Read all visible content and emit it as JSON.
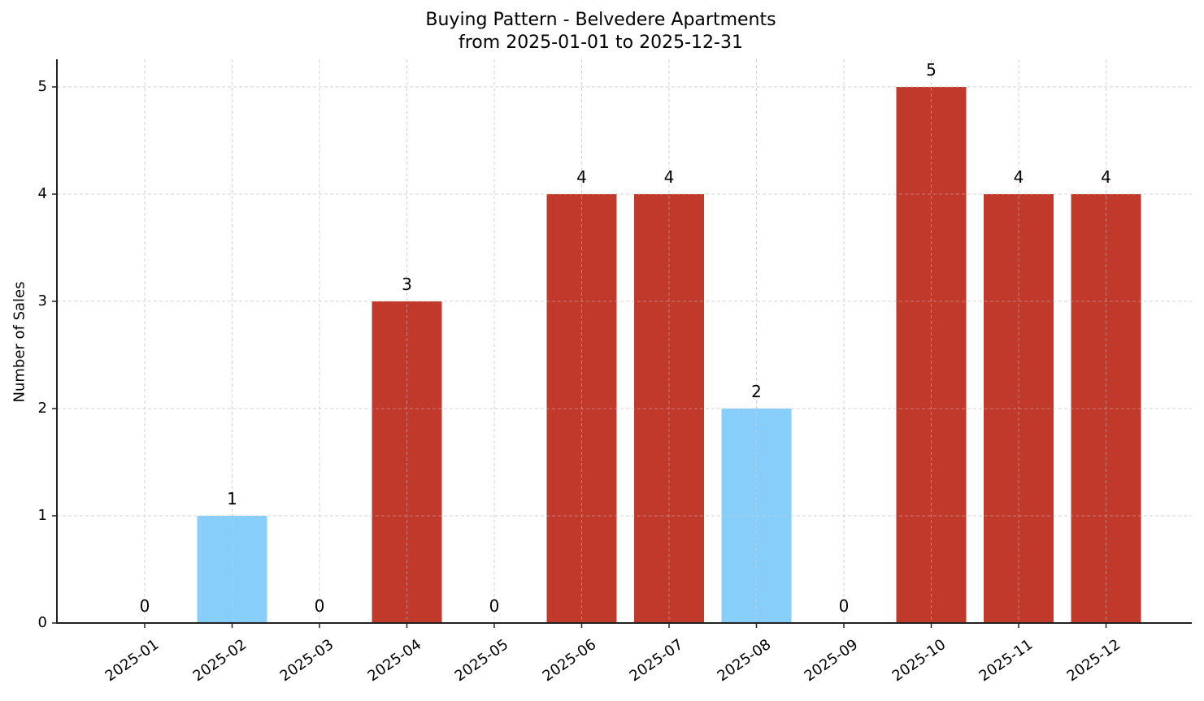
{
  "chart_data": {
    "type": "bar",
    "title": "Buying Pattern - Belvedere Apartments",
    "subtitle": "from 2025-01-01 to 2025-12-31",
    "xlabel": "",
    "ylabel": "Number of Sales",
    "categories": [
      "2025-01",
      "2025-02",
      "2025-03",
      "2025-04",
      "2025-05",
      "2025-06",
      "2025-07",
      "2025-08",
      "2025-09",
      "2025-10",
      "2025-11",
      "2025-12"
    ],
    "values": [
      0,
      1,
      0,
      3,
      0,
      4,
      4,
      2,
      0,
      5,
      4,
      4
    ],
    "bar_colors": [
      "#C0392B",
      "#87CEFA",
      "#C0392B",
      "#C0392B",
      "#C0392B",
      "#C0392B",
      "#C0392B",
      "#87CEFA",
      "#C0392B",
      "#C0392B",
      "#C0392B",
      "#C0392B"
    ],
    "ylim": [
      0,
      5.25
    ],
    "yticks": [
      0,
      1,
      2,
      3,
      4,
      5
    ],
    "grid": true,
    "legend": null,
    "data_labels": true
  },
  "colors": {
    "high": "#C0392B",
    "low": "#87CEFA",
    "grid": "#D3D3D3",
    "axis": "#222222"
  }
}
